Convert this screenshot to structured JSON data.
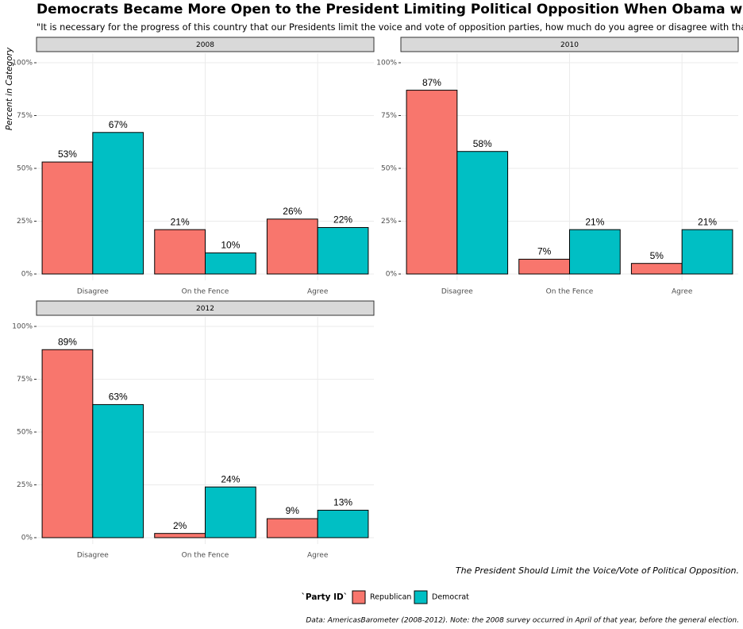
{
  "figure": {
    "title": "Democrats Became More Open to the President Limiting Political Opposition When Obama was President",
    "subtitle": "\"It is necessary for the progress of this country that our Presidents limit the voice and vote of opposition parties, how much do you agree or disagree with that view?\"",
    "xlabel": "The President Should Limit the Voice/Vote of Political Opposition.",
    "legend_title": "`Party ID`",
    "caption": "Data: AmericasBarometer (2008-2012). Note: the 2008 survey occurred in April of that year, before the general election."
  },
  "chart_data": [
    {
      "type": "bar",
      "title": "2008",
      "ylabel": "Percent in Category",
      "categories": [
        "Disagree",
        "On the Fence",
        "Agree"
      ],
      "series": [
        {
          "name": "Republican",
          "color": "#f8766d",
          "values": [
            53,
            21,
            26
          ],
          "value_labels": [
            "53%",
            "21%",
            "26%"
          ]
        },
        {
          "name": "Democrat",
          "color": "#00bfc4",
          "values": [
            67,
            10,
            22
          ],
          "value_labels": [
            "67%",
            "10%",
            "22%"
          ]
        }
      ],
      "ylim": [
        0,
        100
      ],
      "yticks": [
        {
          "value": 0,
          "label": "0%"
        },
        {
          "value": 25,
          "label": "25%"
        },
        {
          "value": 50,
          "label": "50%"
        },
        {
          "value": 75,
          "label": "75%"
        },
        {
          "value": 100,
          "label": "100%"
        }
      ],
      "grid": true
    },
    {
      "type": "bar",
      "title": "2010",
      "categories": [
        "Disagree",
        "On the Fence",
        "Agree"
      ],
      "series": [
        {
          "name": "Republican",
          "color": "#f8766d",
          "values": [
            87,
            7,
            5
          ],
          "value_labels": [
            "87%",
            "7%",
            "5%"
          ]
        },
        {
          "name": "Democrat",
          "color": "#00bfc4",
          "values": [
            58,
            21,
            21
          ],
          "value_labels": [
            "58%",
            "21%",
            "21%"
          ]
        }
      ],
      "ylim": [
        0,
        100
      ],
      "yticks": [
        {
          "value": 0,
          "label": "0%"
        },
        {
          "value": 25,
          "label": "25%"
        },
        {
          "value": 50,
          "label": "50%"
        },
        {
          "value": 75,
          "label": "75%"
        },
        {
          "value": 100,
          "label": "100%"
        }
      ],
      "grid": true
    },
    {
      "type": "bar",
      "title": "2012",
      "categories": [
        "Disagree",
        "On the Fence",
        "Agree"
      ],
      "series": [
        {
          "name": "Republican",
          "color": "#f8766d",
          "values": [
            89,
            2,
            9
          ],
          "value_labels": [
            "89%",
            "2%",
            "9%"
          ]
        },
        {
          "name": "Democrat",
          "color": "#00bfc4",
          "values": [
            63,
            24,
            13
          ],
          "value_labels": [
            "63%",
            "24%",
            "13%"
          ]
        }
      ],
      "ylim": [
        0,
        100
      ],
      "yticks": [
        {
          "value": 0,
          "label": "0%"
        },
        {
          "value": 25,
          "label": "25%"
        },
        {
          "value": 50,
          "label": "50%"
        },
        {
          "value": 75,
          "label": "75%"
        },
        {
          "value": 100,
          "label": "100%"
        }
      ],
      "grid": true
    }
  ]
}
